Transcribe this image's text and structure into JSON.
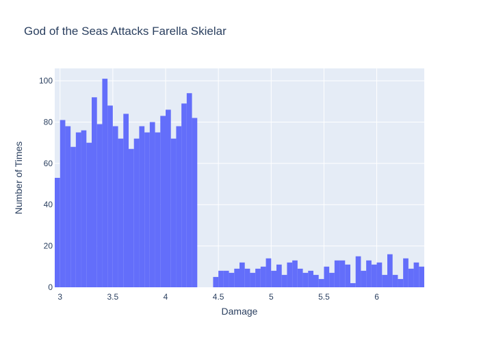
{
  "chart_data": {
    "type": "bar",
    "title": "God of the Seas Attacks Farella Skielar",
    "xlabel": "Damage",
    "ylabel": "Number of Times",
    "xlim": [
      2.95,
      6.45
    ],
    "ylim": [
      0,
      106
    ],
    "x_ticks": [
      3,
      3.5,
      4,
      4.5,
      5,
      5.5,
      6
    ],
    "x_tick_labels": [
      "3",
      "3.5",
      "4",
      "4.5",
      "5",
      "5.5",
      "6"
    ],
    "y_ticks": [
      0,
      20,
      40,
      60,
      80,
      100
    ],
    "y_tick_labels": [
      "0",
      "20",
      "40",
      "60",
      "80",
      "100"
    ],
    "bin_width": 0.05,
    "bin_start": 2.95,
    "counts": [
      53,
      81,
      78,
      68,
      75,
      76,
      70,
      92,
      79,
      101,
      88,
      78,
      72,
      84,
      67,
      72,
      78,
      75,
      80,
      75,
      83,
      86,
      72,
      78,
      89,
      94,
      82,
      0,
      0,
      0,
      5,
      8,
      8,
      7,
      9,
      12,
      9,
      7,
      9,
      10,
      14,
      8,
      11,
      6,
      12,
      13,
      9,
      7,
      8,
      6,
      4,
      10,
      7,
      13,
      13,
      11,
      2,
      15,
      8,
      13,
      11,
      12,
      6,
      16,
      6,
      4,
      14,
      9,
      12,
      10
    ],
    "bar_color": "#636efa",
    "plot_background": "#e5ecf6",
    "gridlines": true
  }
}
